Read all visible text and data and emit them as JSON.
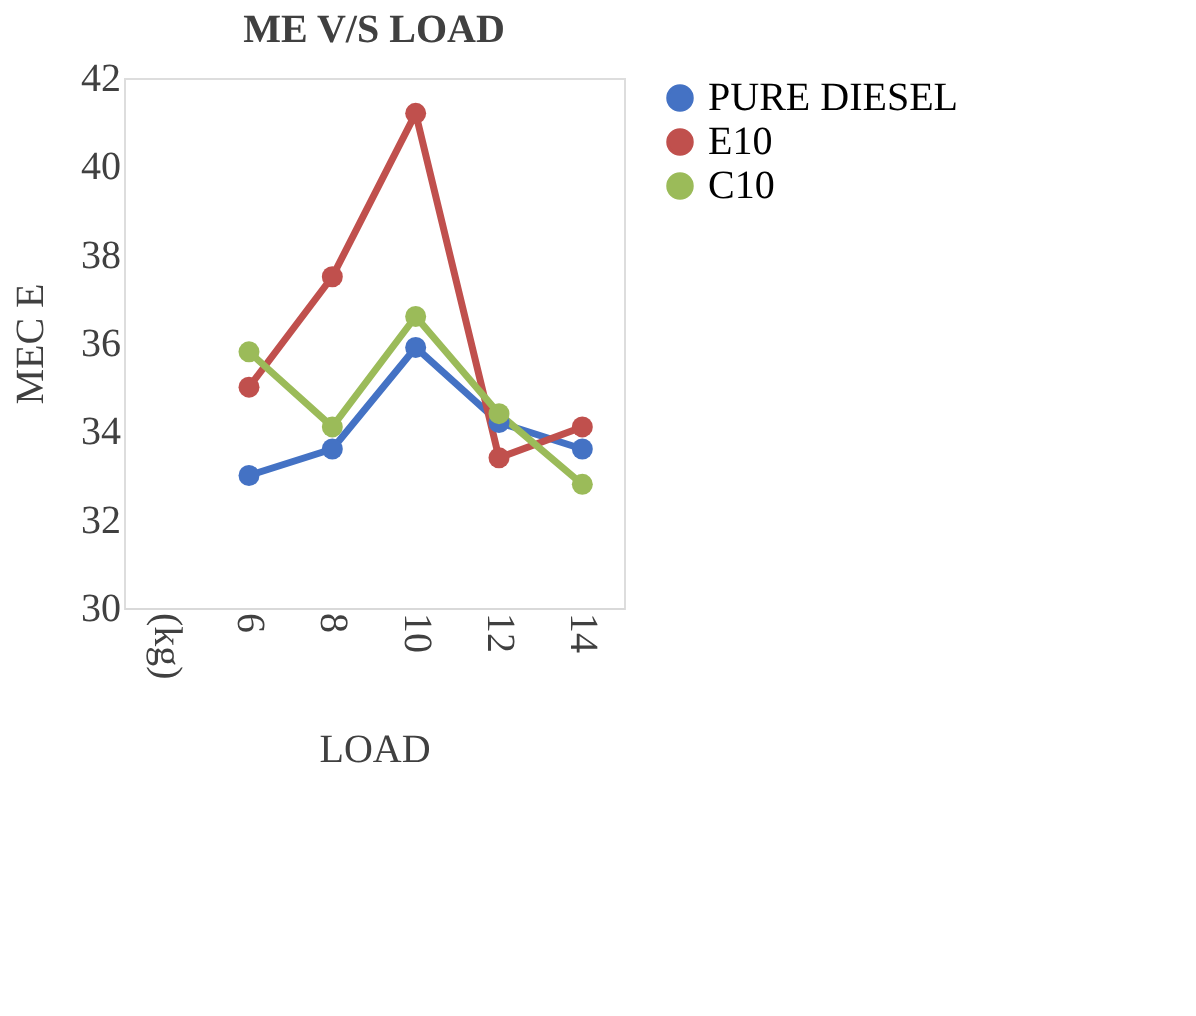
{
  "chart_data": {
    "type": "line",
    "title": "ME V/S LOAD",
    "xlabel": "LOAD",
    "ylabel": "MEC E",
    "categories": [
      "(kg)",
      "6",
      "8",
      "10",
      "12",
      "14"
    ],
    "series": [
      {
        "name": "PURE DIESEL",
        "color": "#4472c4",
        "values": [
          null,
          33.0,
          33.6,
          35.9,
          34.2,
          33.6
        ]
      },
      {
        "name": "E10",
        "color": "#c0504d",
        "values": [
          null,
          35.0,
          37.5,
          41.2,
          33.4,
          34.1
        ]
      },
      {
        "name": "C10",
        "color": "#9bbb59",
        "values": [
          null,
          35.8,
          34.1,
          36.6,
          34.4,
          32.8
        ]
      }
    ],
    "ylim": [
      30,
      42
    ],
    "yticks": [
      30,
      32,
      34,
      36,
      38,
      40,
      42
    ],
    "grid": false,
    "legend": "right",
    "marker": "circle",
    "line_style": "solid"
  }
}
